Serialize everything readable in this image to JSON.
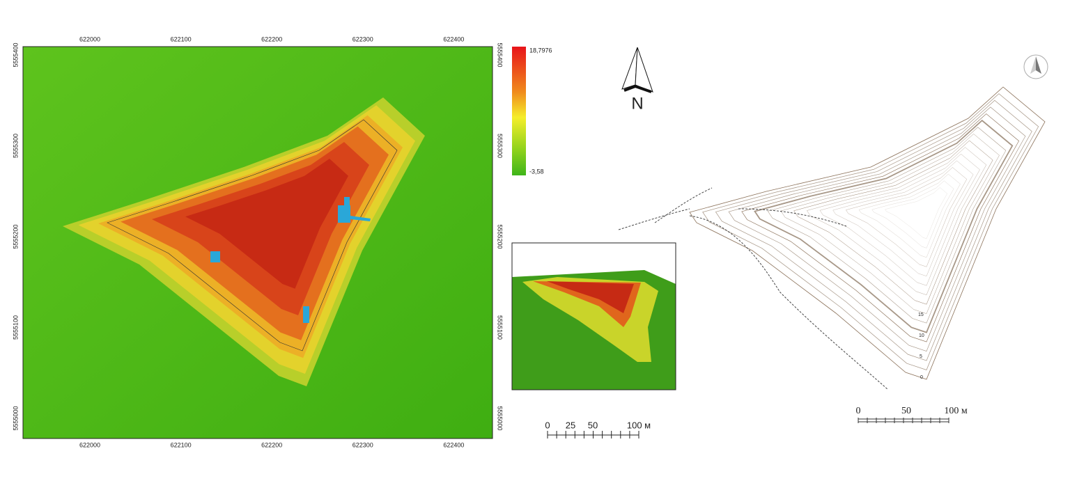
{
  "dem_map": {
    "x_ticks": [
      "622000",
      "622100",
      "622200",
      "622300",
      "622400"
    ],
    "y_ticks": [
      "5555400",
      "5555300",
      "5555200",
      "5555100",
      "5555000"
    ],
    "legend": {
      "max": "18,7976",
      "min": "-3,58"
    }
  },
  "north_label": "N",
  "scale_bar_left": {
    "labels": [
      "0",
      "25",
      "50",
      "100 м"
    ]
  },
  "scale_bar_right": {
    "labels": [
      "0",
      "50",
      "100 м"
    ]
  },
  "contour_labels": [
    "15",
    "10",
    "5",
    "0"
  ]
}
